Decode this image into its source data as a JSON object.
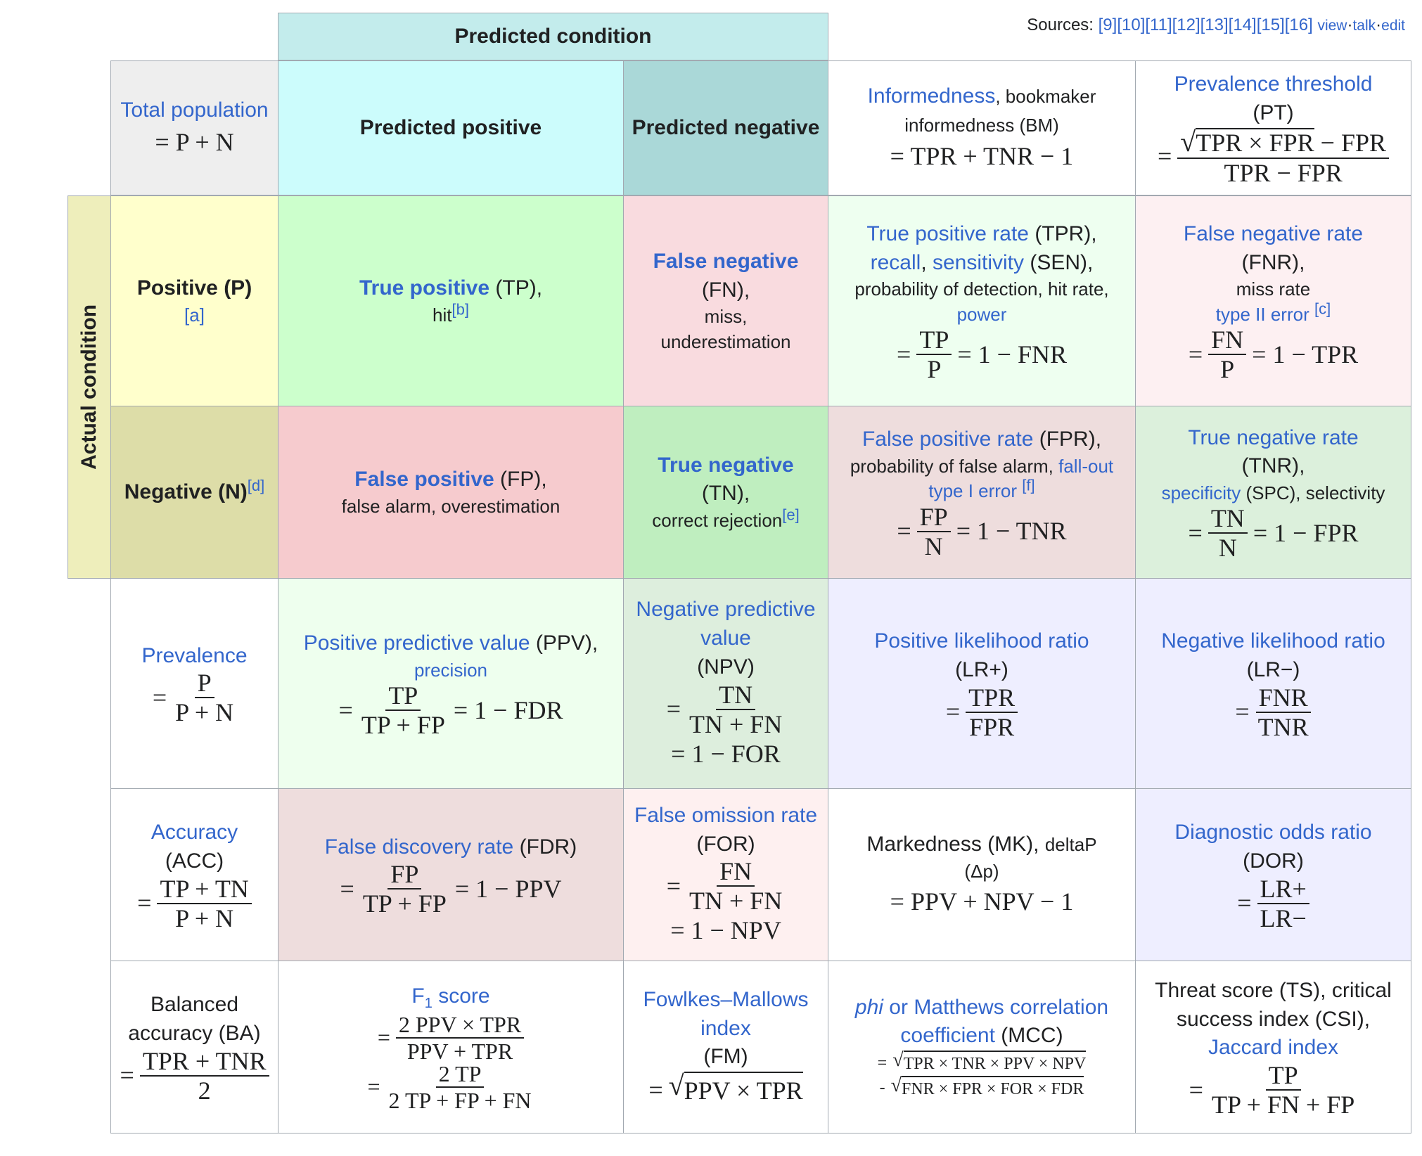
{
  "sources": {
    "label": "Sources:",
    "refs": "[9][10][11][12][13][14][15][16]",
    "view": "view",
    "talk": "talk",
    "edit": "edit",
    "sep": "·"
  },
  "header": {
    "predicted_condition": "Predicted condition",
    "actual_condition": "Actual condition"
  },
  "top": {
    "total_population": "Total population",
    "total_formula": "= P + N",
    "predicted_positive": "Predicted positive",
    "predicted_negative": "Predicted negative",
    "informedness": "Informedness",
    "informedness_rest": ", bookmaker informedness (BM)",
    "informedness_formula": "= TPR + TNR − 1",
    "prevalence_threshold": "Prevalence threshold",
    "pt_abbr": "(PT)",
    "pt_num": "TPR × FPR",
    "pt_num_rest": "− FPR",
    "pt_den": "TPR − FPR"
  },
  "positive_row": {
    "label": "Positive (P)",
    "note": "[a]",
    "tp": "True positive",
    "tp_abbr": "(TP),",
    "tp_alias": "hit",
    "tp_note": "[b]",
    "fn": "False negative",
    "fn_abbr": "(FN),",
    "fn_alias1": "miss,",
    "fn_alias2": "underestimation",
    "tpr": "True positive rate",
    "tpr_abbr": "(TPR),",
    "recall": "recall",
    "sensitivity": "sensitivity",
    "sen_abbr": "(SEN),",
    "tpr_alias": "probability of detection, hit rate,",
    "power": "power",
    "tpr_num": "TP",
    "tpr_den": "P",
    "tpr_rest": "= 1 − FNR",
    "fnr": "False negative rate",
    "fnr_abbr": "(FNR),",
    "fnr_alias": "miss rate",
    "type2": "type II error",
    "fnr_note": "[c]",
    "fnr_num": "FN",
    "fnr_den": "P",
    "fnr_rest": "= 1 − TPR"
  },
  "negative_row": {
    "label": "Negative (N)",
    "note": "[d]",
    "fp": "False positive",
    "fp_abbr": "(FP),",
    "fp_alias": "false alarm, overestimation",
    "tn": "True negative",
    "tn_abbr": "(TN),",
    "tn_alias": "correct rejection",
    "tn_note": "[e]",
    "fpr": "False positive rate",
    "fpr_abbr": "(FPR),",
    "fpr_alias": "probability of false alarm,",
    "fallout": "fall-out",
    "type1": "type I error",
    "fpr_note": "[f]",
    "fpr_num": "FP",
    "fpr_den": "N",
    "fpr_rest": "= 1 − TNR",
    "tnr": "True negative rate",
    "tnr_abbr": "(TNR),",
    "specificity": "specificity",
    "spc_rest": "(SPC), selectivity",
    "tnr_num": "TN",
    "tnr_den": "N",
    "tnr_rest": "= 1 − FPR"
  },
  "row3": {
    "prevalence": "Prevalence",
    "prev_num": "P",
    "prev_den": "P + N",
    "ppv": "Positive predictive value",
    "ppv_abbr": "(PPV),",
    "precision": "precision",
    "ppv_num": "TP",
    "ppv_den": "TP + FP",
    "ppv_rest": "= 1 − FDR",
    "npv": "Negative predictive value",
    "npv_abbr": "(NPV)",
    "npv_num": "TN",
    "npv_den": "TN + FN",
    "npv_rest": "= 1 − FOR",
    "lrp": "Positive likelihood ratio",
    "lrp_abbr": "(LR+)",
    "lrp_num": "TPR",
    "lrp_den": "FPR",
    "lrn": "Negative likelihood ratio",
    "lrn_abbr": "(LR−)",
    "lrn_num": "FNR",
    "lrn_den": "TNR"
  },
  "row4": {
    "accuracy": "Accuracy",
    "acc_abbr": "(ACC)",
    "acc_num": "TP + TN",
    "acc_den": "P + N",
    "fdr": "False discovery rate",
    "fdr_abbr": "(FDR)",
    "fdr_num": "FP",
    "fdr_den": "TP + FP",
    "fdr_rest": "= 1 − PPV",
    "for": "False omission rate",
    "for_abbr": "(FOR)",
    "for_num": "FN",
    "for_den": "TN + FN",
    "for_rest": "= 1 − NPV",
    "mk": "Markedness (MK),",
    "deltap": "deltaP",
    "deltap_sym": "(Δp)",
    "mk_formula": "= PPV + NPV − 1",
    "dor": "Diagnostic odds ratio",
    "dor_abbr": "(DOR)",
    "dor_num": "LR+",
    "dor_den": "LR−"
  },
  "row5": {
    "ba": "Balanced accuracy (BA)",
    "ba_num": "TPR + TNR",
    "ba_den": "2",
    "f1": "F",
    "f1_sub": "1",
    "f1_rest": "score",
    "f1_num1": "2 PPV × TPR",
    "f1_den1": "PPV + TPR",
    "f1_num2": "2 TP",
    "f1_den2": "2 TP + FP + FN",
    "fm": "Fowlkes–Mallows index",
    "fm_abbr": "(FM)",
    "fm_formula": "PPV × TPR",
    "phi": "phi",
    "or_text": "or",
    "mcc": "Matthews correlation coefficient",
    "mcc_abbr": "(MCC)",
    "mcc_l1": "TPR × TNR × PPV × NPV",
    "mcc_l2": "FNR × FPR × FOR × FDR",
    "ts": "Threat score (TS), critical success index (CSI),",
    "jaccard": "Jaccard index",
    "ts_num": "TP",
    "ts_den": "TP + FN + FP"
  },
  "colors": {
    "pred_header": "#c3ecec",
    "total": "#eeeeee",
    "pred_pos": "#ccfcfc",
    "pred_neg": "#aad8d8",
    "actual": "#eeeebb",
    "pos": "#ffffcc",
    "neg": "#dddda8",
    "tp": "#ccffcc",
    "fn": "#f9dbdf",
    "fp": "#f6cbce",
    "tn": "#bfeebf",
    "tpr": "#eefff0",
    "fnr": "#fdf0f2",
    "fpr": "#eedddd",
    "tnr": "#dcf0dc",
    "ppv": "#eeffee",
    "npv": "#ddeedd",
    "lr": "#eeeeff",
    "fdr": "#eedddd",
    "for": "#fef0f0",
    "link": "#3366cc"
  }
}
